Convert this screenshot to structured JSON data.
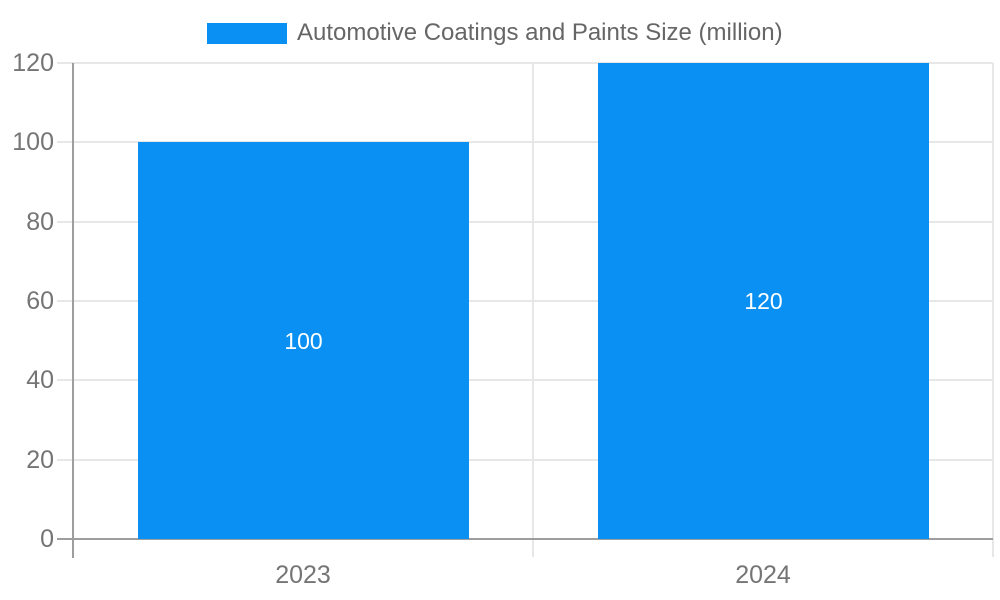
{
  "chart_data": {
    "type": "bar",
    "title": "",
    "categories": [
      "2023",
      "2024"
    ],
    "series": [
      {
        "name": "Automotive Coatings and Paints Size (million)",
        "values": [
          100,
          120
        ]
      }
    ],
    "bar_value_labels": [
      "100",
      "120"
    ],
    "ylim": [
      0,
      120
    ],
    "yticks": [
      0,
      20,
      40,
      60,
      80,
      100,
      120
    ],
    "xlabel": "",
    "ylabel": "",
    "grid": true,
    "legend_position": "top-center"
  },
  "colors": {
    "bar": "#0a90f2",
    "gridline": "#e7e7e7",
    "axis_line": "#9e9e9e",
    "tick_label": "#757575",
    "legend_text": "#666666",
    "value_label": "#ffffff",
    "background": "#ffffff"
  }
}
